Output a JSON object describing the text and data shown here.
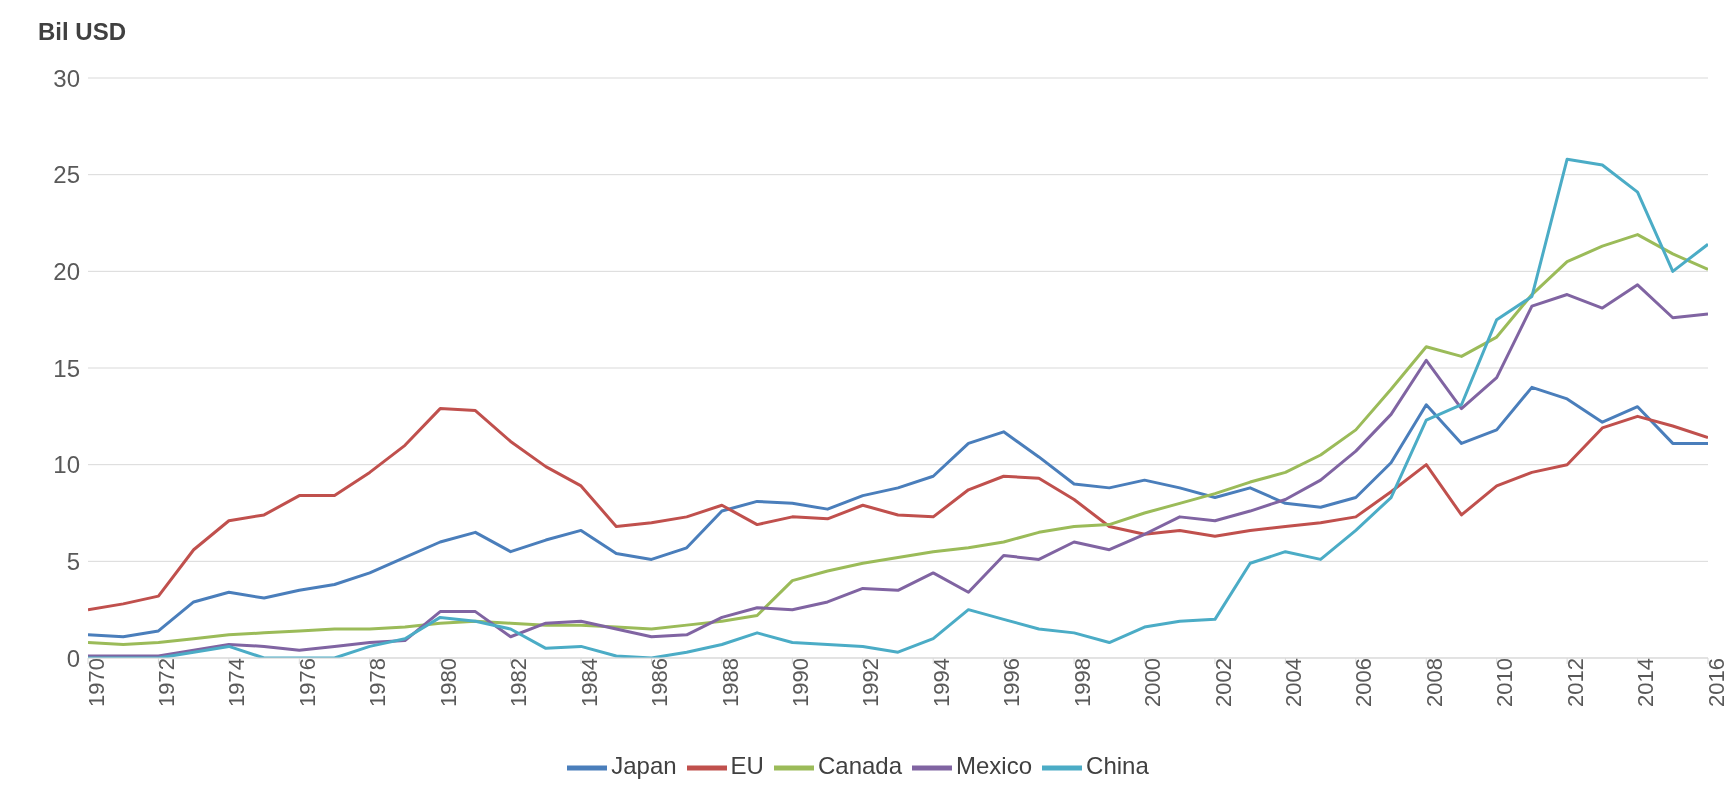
{
  "chart_data": {
    "type": "line",
    "ylabel": "Bil USD",
    "x": [
      1970,
      1971,
      1972,
      1973,
      1974,
      1975,
      1976,
      1977,
      1978,
      1979,
      1980,
      1981,
      1982,
      1983,
      1984,
      1985,
      1986,
      1987,
      1988,
      1989,
      1990,
      1991,
      1992,
      1993,
      1994,
      1995,
      1996,
      1997,
      1998,
      1999,
      2000,
      2001,
      2002,
      2003,
      2004,
      2005,
      2006,
      2007,
      2008,
      2009,
      2010,
      2011,
      2012,
      2013,
      2014,
      2015,
      2016
    ],
    "xlim": [
      1970,
      2016
    ],
    "xticks": [
      1970,
      1972,
      1974,
      1976,
      1978,
      1980,
      1982,
      1984,
      1986,
      1988,
      1990,
      1992,
      1994,
      1996,
      1998,
      2000,
      2002,
      2004,
      2006,
      2008,
      2010,
      2012,
      2014,
      2016
    ],
    "ylim": [
      0,
      30
    ],
    "yticks": [
      0,
      5,
      10,
      15,
      20,
      25,
      30
    ],
    "grid": "y",
    "legend": "bottom",
    "marker": "none",
    "line_style": "solid",
    "series": [
      {
        "name": "Japan",
        "color": "#4a7ebb",
        "values": [
          1.2,
          1.1,
          1.4,
          2.9,
          3.4,
          3.1,
          3.5,
          3.8,
          4.4,
          5.2,
          6.0,
          6.5,
          5.5,
          6.1,
          6.6,
          5.4,
          5.1,
          5.7,
          7.6,
          8.1,
          8.0,
          7.7,
          8.4,
          8.8,
          9.4,
          11.1,
          11.7,
          10.4,
          9.0,
          8.8,
          9.2,
          8.8,
          8.3,
          8.8,
          8.0,
          7.8,
          8.3,
          10.1,
          13.1,
          11.1,
          11.8,
          14.0,
          13.4,
          12.2,
          13.0,
          11.1,
          11.1
        ]
      },
      {
        "name": "EU",
        "color": "#c0504d",
        "values": [
          2.5,
          2.8,
          3.2,
          5.6,
          7.1,
          7.4,
          8.4,
          8.4,
          9.6,
          11.0,
          12.9,
          12.8,
          11.2,
          9.9,
          8.9,
          6.8,
          7.0,
          7.3,
          7.9,
          6.9,
          7.3,
          7.2,
          7.9,
          7.4,
          7.3,
          8.7,
          9.4,
          9.3,
          8.2,
          6.8,
          6.4,
          6.6,
          6.3,
          6.6,
          6.8,
          7.0,
          7.3,
          8.6,
          10.0,
          7.4,
          8.9,
          9.6,
          10.0,
          11.9,
          12.5,
          12.0,
          11.4
        ]
      },
      {
        "name": "Canada",
        "color": "#9bbb59",
        "values": [
          0.8,
          0.7,
          0.8,
          1.0,
          1.2,
          1.3,
          1.4,
          1.5,
          1.5,
          1.6,
          1.8,
          1.9,
          1.8,
          1.7,
          1.7,
          1.6,
          1.5,
          1.7,
          1.9,
          2.2,
          4.0,
          4.5,
          4.9,
          5.2,
          5.5,
          5.7,
          6.0,
          6.5,
          6.8,
          6.9,
          7.5,
          8.0,
          8.5,
          9.1,
          9.6,
          10.5,
          11.8,
          13.9,
          16.1,
          15.6,
          16.6,
          18.8,
          20.5,
          21.3,
          21.9,
          20.9,
          20.1
        ]
      },
      {
        "name": "Mexico",
        "color": "#8064a2",
        "values": [
          0.1,
          0.1,
          0.1,
          0.4,
          0.7,
          0.6,
          0.4,
          0.6,
          0.8,
          0.9,
          2.4,
          2.4,
          1.1,
          1.8,
          1.9,
          1.5,
          1.1,
          1.2,
          2.1,
          2.6,
          2.5,
          2.9,
          3.6,
          3.5,
          4.4,
          3.4,
          5.3,
          5.1,
          6.0,
          5.6,
          6.4,
          7.3,
          7.1,
          7.6,
          8.2,
          9.2,
          10.7,
          12.6,
          15.4,
          12.9,
          14.5,
          18.2,
          18.8,
          18.1,
          19.3,
          17.6,
          17.8
        ]
      },
      {
        "name": "China",
        "color": "#4bacc6",
        "values": [
          0.0,
          0.0,
          0.0,
          0.3,
          0.6,
          0.0,
          0.0,
          0.0,
          0.6,
          1.0,
          2.1,
          1.9,
          1.5,
          0.5,
          0.6,
          0.1,
          0.0,
          0.3,
          0.7,
          1.3,
          0.8,
          0.7,
          0.6,
          0.3,
          1.0,
          2.5,
          2.0,
          1.5,
          1.3,
          0.8,
          1.6,
          1.9,
          2.0,
          4.9,
          5.5,
          5.1,
          6.6,
          8.3,
          12.3,
          13.1,
          17.5,
          18.7,
          25.8,
          25.5,
          24.1,
          20.0,
          21.4
        ]
      }
    ]
  }
}
